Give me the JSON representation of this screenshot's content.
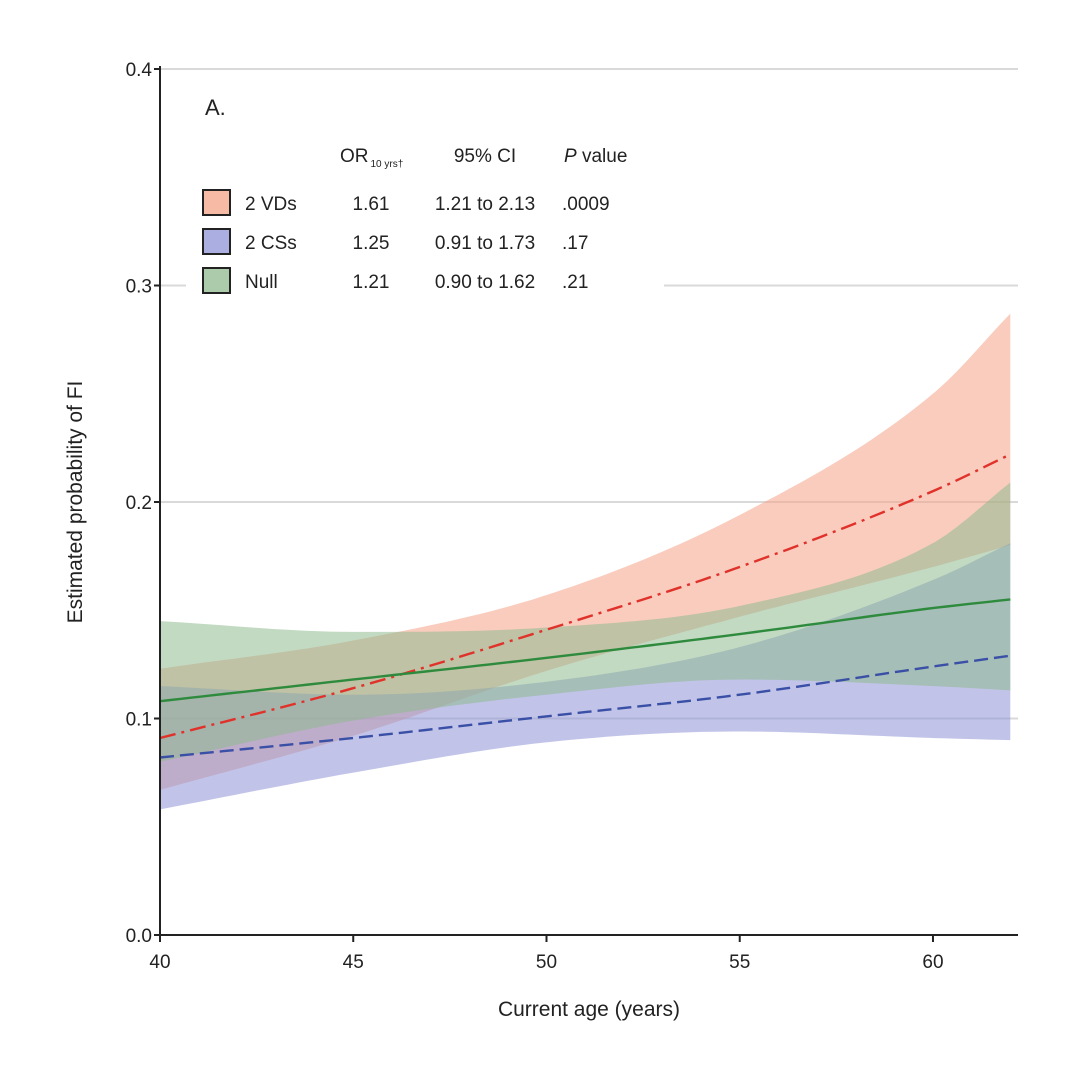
{
  "chart_data": {
    "type": "line",
    "panel_label": "A.",
    "xlabel": "Current age (years)",
    "ylabel": "Estimated probability of FI",
    "xlim": [
      40,
      62.2
    ],
    "ylim": [
      0,
      0.4
    ],
    "xticks": [
      40,
      45,
      50,
      55,
      60
    ],
    "yticks": [
      0.0,
      0.1,
      0.2,
      0.3,
      0.4
    ],
    "ytick_labels": [
      "0.0",
      "0.1",
      "0.2",
      "0.3",
      "0.4"
    ],
    "grid": "horizontal",
    "table": {
      "header": {
        "or_main": "OR",
        "or_sub": "10 yrs†",
        "ci": "95% CI",
        "p_italic": "P",
        "p_rest": " value"
      },
      "rows": [
        {
          "label": "2 VDs",
          "or": "1.61",
          "ci": "1.21 to 2.13",
          "p": ".0009"
        },
        {
          "label": "2 CSs",
          "or": "1.25",
          "ci": "0.91 to 1.73",
          "p": ".17"
        },
        {
          "label": "Null",
          "or": "1.21",
          "ci": "0.90 to 1.62",
          "p": ".21"
        }
      ]
    },
    "series": [
      {
        "name": "2 VDs",
        "color": "#e0322b",
        "band_color": "#f4a386",
        "dash": "dashdot",
        "x": [
          40,
          45,
          50,
          55,
          60,
          62
        ],
        "y": [
          0.091,
          0.114,
          0.141,
          0.17,
          0.205,
          0.222
        ],
        "lower": [
          0.067,
          0.092,
          0.122,
          0.147,
          0.17,
          0.18
        ],
        "upper": [
          0.123,
          0.136,
          0.157,
          0.194,
          0.25,
          0.287
        ]
      },
      {
        "name": "2 CSs",
        "color": "#3a4fa6",
        "band_color": "#8e93d6",
        "dash": "dashed",
        "x": [
          40,
          45,
          50,
          55,
          60,
          62
        ],
        "y": [
          0.082,
          0.091,
          0.101,
          0.111,
          0.124,
          0.129
        ],
        "lower": [
          0.058,
          0.075,
          0.089,
          0.094,
          0.091,
          0.09
        ],
        "upper": [
          0.115,
          0.111,
          0.117,
          0.133,
          0.164,
          0.181
        ]
      },
      {
        "name": "Null",
        "color": "#2e8b3d",
        "band_color": "#8fb98f",
        "dash": "solid",
        "x": [
          40,
          45,
          50,
          55,
          60,
          62
        ],
        "y": [
          0.108,
          0.118,
          0.128,
          0.139,
          0.151,
          0.155
        ],
        "lower": [
          0.08,
          0.099,
          0.111,
          0.118,
          0.115,
          0.113
        ],
        "upper": [
          0.145,
          0.14,
          0.142,
          0.152,
          0.181,
          0.209
        ]
      }
    ]
  }
}
